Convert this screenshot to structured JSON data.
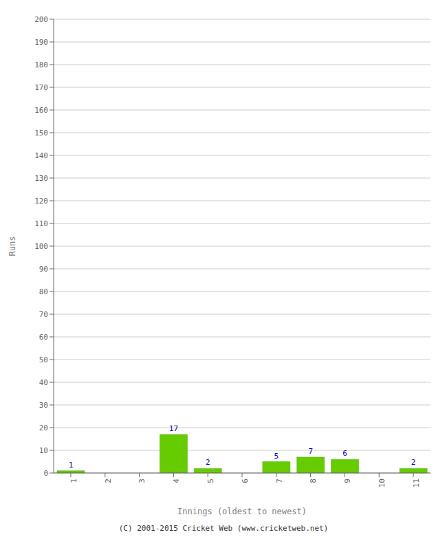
{
  "chart_data": {
    "type": "bar",
    "x_label": "Innings (oldest to newest)",
    "y_label": "Runs",
    "categories": [
      "1",
      "2",
      "3",
      "4",
      "5",
      "6",
      "7",
      "8",
      "9",
      "10",
      "11"
    ],
    "values": [
      1,
      0,
      0,
      17,
      2,
      0,
      5,
      7,
      6,
      0,
      2
    ],
    "color": "#66cc00",
    "ylim": [
      0,
      200
    ],
    "yticks": [
      0,
      10,
      20,
      30,
      40,
      50,
      60,
      70,
      80,
      90,
      100,
      110,
      120,
      130,
      140,
      150,
      160,
      170,
      180,
      190,
      200
    ],
    "grid": true,
    "data_labels": true,
    "annotations": [
      "(C) 2001-2015 Cricket Web (www.cricketweb.net)"
    ]
  }
}
